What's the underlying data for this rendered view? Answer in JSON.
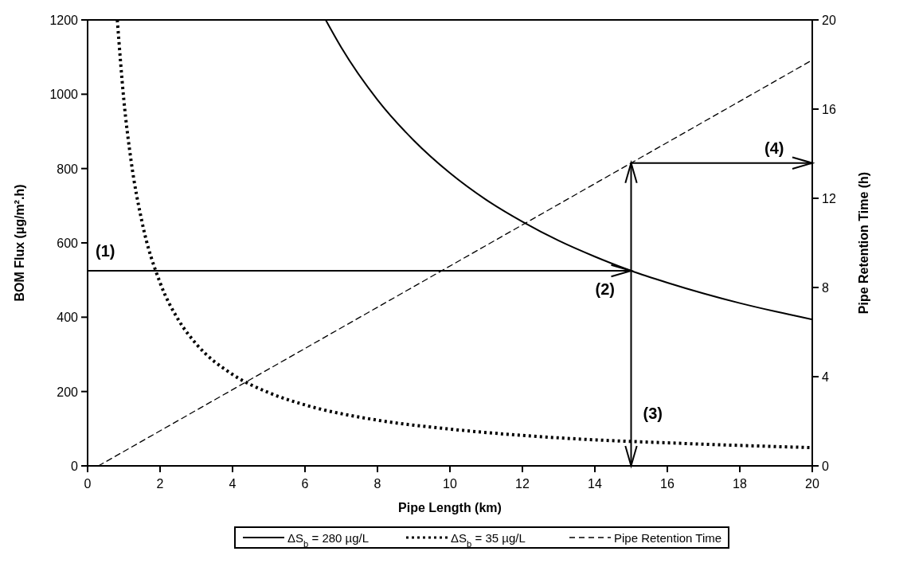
{
  "chart_data": {
    "type": "line",
    "xlabel": "Pipe Length (km)",
    "ylabel": "BOM Flux (µg/m².h)",
    "y2label": "Pipe Retention Time (h)",
    "xlim": [
      0,
      20
    ],
    "xticks": [
      0,
      2,
      4,
      6,
      8,
      10,
      12,
      14,
      16,
      18,
      20
    ],
    "ylim": [
      0,
      1200
    ],
    "yticks": [
      0,
      200,
      400,
      600,
      800,
      1000,
      1200
    ],
    "y2lim": [
      0,
      20
    ],
    "y2ticks": [
      0,
      4,
      8,
      12,
      16,
      20
    ],
    "grid": false,
    "legend": "bottom",
    "series": [
      {
        "name": "ΔS$_{b}$ = 280 µg/L",
        "color": "#000000",
        "line_style": "solid",
        "x": [
          6.57,
          7,
          8,
          9,
          10,
          11,
          12,
          13,
          14,
          15,
          16,
          17,
          18,
          19,
          20
        ],
        "values": [
          1200,
          1126,
          985,
          876,
          788,
          716,
          657,
          606,
          563,
          525,
          493,
          464,
          438,
          415,
          394
        ]
      },
      {
        "name": "ΔS$_{b}$ = 35 µg/L",
        "color": "#000000",
        "line_style": "dotted",
        "x": [
          0.82,
          1,
          1.2,
          1.5,
          2,
          2.5,
          3,
          4,
          5,
          6,
          8,
          10,
          12,
          14,
          16,
          18,
          20
        ],
        "values": [
          1200,
          985,
          821,
          657,
          493,
          394,
          328,
          246,
          197,
          164,
          123,
          99,
          82,
          70,
          62,
          55,
          49
        ]
      },
      {
        "name": "Pipe Retention Time",
        "color": "#000000",
        "line_style": "dashed",
        "axis": "y2",
        "x": [
          0.3,
          20
        ],
        "values": [
          0,
          18.2
        ]
      }
    ],
    "annotations": [
      "(1)",
      {
        "text": "(2)",
        "x": 15,
        "y": 525
      },
      {
        "text": "(3)",
        "x": 15,
        "y": 66
      },
      "(4)"
    ]
  }
}
